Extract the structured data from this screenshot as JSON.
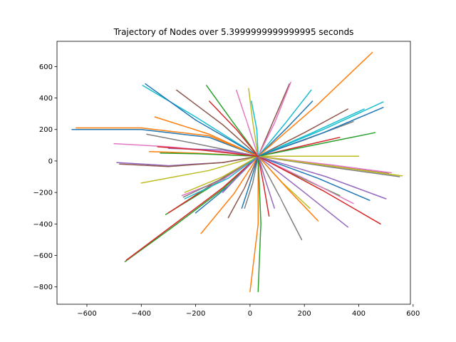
{
  "chart_data": {
    "type": "line",
    "title": "Trajectory of Nodes over 5.3999999999999995 seconds",
    "xlabel": "",
    "ylabel": "",
    "xlim": [
      -710,
      590
    ],
    "ylim": [
      -910,
      760
    ],
    "x_ticks": [
      -600,
      -400,
      -200,
      0,
      200,
      400,
      600
    ],
    "y_ticks": [
      -800,
      -600,
      -400,
      -200,
      0,
      200,
      400,
      600
    ],
    "x_tick_labels": [
      "−600",
      "−400",
      "−200",
      "0",
      "200",
      "400",
      "600"
    ],
    "y_tick_labels": [
      "−800",
      "−600",
      "−400",
      "−200",
      "0",
      "200",
      "400",
      "600"
    ],
    "grid": false,
    "legend": "none",
    "palette": [
      "#1f77b4",
      "#ff7f0e",
      "#2ca02c",
      "#d62728",
      "#9467bd",
      "#8c564b",
      "#e377c2",
      "#7f7f7f",
      "#bcbd22",
      "#17becf"
    ],
    "series": [
      {
        "x": [
          -655,
          -400,
          -150,
          30
        ],
        "y": [
          200,
          200,
          150,
          30
        ]
      },
      {
        "x": [
          -640,
          -400,
          -150,
          30
        ],
        "y": [
          210,
          210,
          160,
          30
        ]
      },
      {
        "x": [
          -460,
          -300,
          -100,
          30
        ],
        "y": [
          -640,
          -440,
          -180,
          30
        ]
      },
      {
        "x": [
          -455,
          -300,
          -100,
          30
        ],
        "y": [
          -630,
          -430,
          -170,
          30
        ]
      },
      {
        "x": [
          -490,
          -300,
          -100,
          30
        ],
        "y": [
          -10,
          -30,
          -10,
          30
        ]
      },
      {
        "x": [
          -480,
          -300,
          -100,
          30
        ],
        "y": [
          -20,
          -35,
          -10,
          30
        ]
      },
      {
        "x": [
          -500,
          -300,
          -100,
          30
        ],
        "y": [
          110,
          90,
          60,
          30
        ]
      },
      {
        "x": [
          -380,
          -200,
          30
        ],
        "y": [
          170,
          110,
          30
        ]
      },
      {
        "x": [
          -400,
          -150,
          30
        ],
        "y": [
          -140,
          -60,
          30
        ]
      },
      {
        "x": [
          -395,
          -200,
          30
        ],
        "y": [
          480,
          280,
          30
        ]
      },
      {
        "x": [
          -385,
          -200,
          30
        ],
        "y": [
          490,
          260,
          30
        ]
      },
      {
        "x": [
          -350,
          -150,
          30
        ],
        "y": [
          280,
          170,
          30
        ]
      },
      {
        "x": [
          -310,
          -150,
          30
        ],
        "y": [
          -340,
          -170,
          30
        ]
      },
      {
        "x": [
          -300,
          -150,
          30
        ],
        "y": [
          -330,
          -160,
          30
        ]
      },
      {
        "x": [
          -300,
          -100,
          30
        ],
        "y": [
          80,
          70,
          30
        ]
      },
      {
        "x": [
          -270,
          -100,
          30
        ],
        "y": [
          450,
          230,
          30
        ]
      },
      {
        "x": [
          -250,
          -100,
          30
        ],
        "y": [
          -220,
          -120,
          30
        ]
      },
      {
        "x": [
          -245,
          -100,
          30
        ],
        "y": [
          -230,
          -110,
          30
        ]
      },
      {
        "x": [
          -240,
          -100,
          30
        ],
        "y": [
          -200,
          -100,
          30
        ]
      },
      {
        "x": [
          -240,
          -80,
          30
        ],
        "y": [
          -240,
          -110,
          30
        ]
      },
      {
        "x": [
          -200,
          -80,
          30
        ],
        "y": [
          -330,
          -160,
          30
        ]
      },
      {
        "x": [
          -180,
          -60,
          30
        ],
        "y": [
          -460,
          -210,
          30
        ]
      },
      {
        "x": [
          -160,
          -60,
          30
        ],
        "y": [
          480,
          240,
          30
        ]
      },
      {
        "x": [
          -150,
          -50,
          30
        ],
        "y": [
          380,
          200,
          30
        ]
      },
      {
        "x": [
          -100,
          -40,
          30
        ],
        "y": [
          -200,
          -90,
          30
        ]
      },
      {
        "x": [
          -80,
          -20,
          30
        ],
        "y": [
          -360,
          -170,
          30
        ]
      },
      {
        "x": [
          -50,
          -10,
          30
        ],
        "y": [
          450,
          240,
          30
        ]
      },
      {
        "x": [
          -20,
          10,
          30
        ],
        "y": [
          -300,
          -140,
          30
        ]
      },
      {
        "x": [
          -5,
          10,
          30
        ],
        "y": [
          460,
          250,
          30
        ]
      },
      {
        "x": [
          5,
          25,
          30
        ],
        "y": [
          380,
          200,
          30
        ]
      },
      {
        "x": [
          -30,
          0,
          30
        ],
        "y": [
          -300,
          -140,
          30
        ]
      },
      {
        "x": [
          0,
          30,
          30
        ],
        "y": [
          -830,
          -400,
          30
        ]
      },
      {
        "x": [
          30,
          40,
          30
        ],
        "y": [
          -830,
          -400,
          30
        ]
      },
      {
        "x": [
          70,
          50,
          30
        ],
        "y": [
          -350,
          -150,
          30
        ]
      },
      {
        "x": [
          90,
          60,
          30
        ],
        "y": [
          -300,
          -140,
          30
        ]
      },
      {
        "x": [
          145,
          80,
          30
        ],
        "y": [
          490,
          230,
          30
        ]
      },
      {
        "x": [
          150,
          90,
          30
        ],
        "y": [
          500,
          240,
          30
        ]
      },
      {
        "x": [
          190,
          110,
          30
        ],
        "y": [
          -500,
          -230,
          30
        ]
      },
      {
        "x": [
          220,
          120,
          30
        ],
        "y": [
          -300,
          -140,
          30
        ]
      },
      {
        "x": [
          225,
          130,
          30
        ],
        "y": [
          450,
          240,
          30
        ]
      },
      {
        "x": [
          230,
          130,
          30
        ],
        "y": [
          380,
          200,
          30
        ]
      },
      {
        "x": [
          250,
          140,
          30
        ],
        "y": [
          -380,
          -180,
          30
        ]
      },
      {
        "x": [
          330,
          180,
          30
        ],
        "y": [
          -220,
          -100,
          30
        ]
      },
      {
        "x": [
          330,
          180,
          30
        ],
        "y": [
          150,
          90,
          30
        ]
      },
      {
        "x": [
          360,
          200,
          30
        ],
        "y": [
          -420,
          -200,
          30
        ]
      },
      {
        "x": [
          360,
          200,
          30
        ],
        "y": [
          330,
          180,
          30
        ]
      },
      {
        "x": [
          380,
          210,
          30
        ],
        "y": [
          -270,
          -120,
          30
        ]
      },
      {
        "x": [
          380,
          210,
          30
        ],
        "y": [
          250,
          140,
          30
        ]
      },
      {
        "x": [
          400,
          220,
          30
        ],
        "y": [
          30,
          30,
          30
        ]
      },
      {
        "x": [
          420,
          230,
          30
        ],
        "y": [
          330,
          180,
          30
        ]
      },
      {
        "x": [
          440,
          250,
          30
        ],
        "y": [
          -250,
          -110,
          30
        ]
      },
      {
        "x": [
          450,
          250,
          30
        ],
        "y": [
          690,
          360,
          30
        ]
      },
      {
        "x": [
          460,
          260,
          30
        ],
        "y": [
          180,
          110,
          30
        ]
      },
      {
        "x": [
          480,
          270,
          30
        ],
        "y": [
          -400,
          -190,
          30
        ]
      },
      {
        "x": [
          500,
          280,
          30
        ],
        "y": [
          -240,
          -100,
          30
        ]
      },
      {
        "x": [
          510,
          290,
          30
        ],
        "y": [
          -80,
          -30,
          30
        ]
      },
      {
        "x": [
          520,
          300,
          30
        ],
        "y": [
          -75,
          -25,
          30
        ]
      },
      {
        "x": [
          550,
          300,
          30
        ],
        "y": [
          -100,
          -40,
          30
        ]
      },
      {
        "x": [
          560,
          310,
          30
        ],
        "y": [
          -95,
          -35,
          30
        ]
      },
      {
        "x": [
          490,
          270,
          30
        ],
        "y": [
          375,
          200,
          30
        ]
      },
      {
        "x": [
          490,
          270,
          30
        ],
        "y": [
          340,
          180,
          30
        ]
      },
      {
        "x": [
          -370,
          -200,
          30
        ],
        "y": [
          60,
          50,
          30
        ]
      },
      {
        "x": [
          -330,
          -180,
          30
        ],
        "y": [
          50,
          45,
          30
        ]
      },
      {
        "x": [
          -340,
          -180,
          30
        ],
        "y": [
          90,
          70,
          30
        ]
      }
    ]
  }
}
